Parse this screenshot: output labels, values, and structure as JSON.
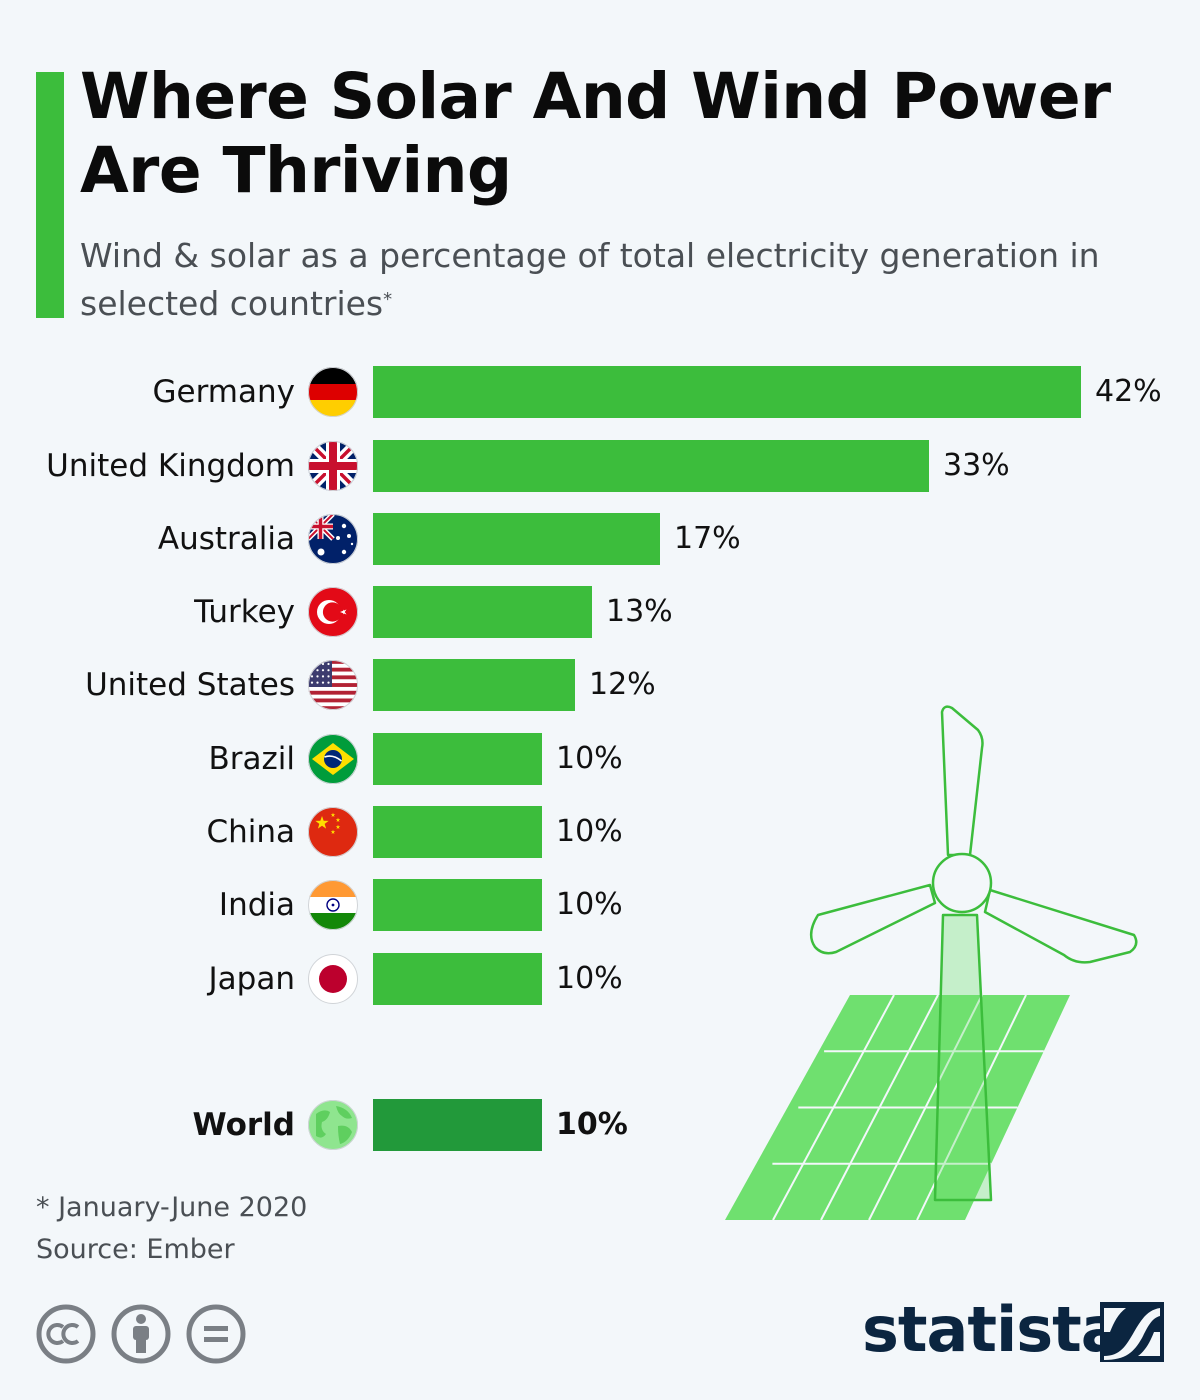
{
  "header": {
    "title": "Where Solar And Wind Power Are Thriving",
    "subtitle": "Wind & solar as a percentage of total electricity generation in selected countries",
    "subtitle_marker": "*"
  },
  "chart_data": {
    "type": "bar",
    "orientation": "horizontal",
    "title": "Where Solar And Wind Power Are Thriving",
    "subtitle": "Wind & solar as a percentage of total electricity generation in selected countries*",
    "categories": [
      "Germany",
      "United Kingdom",
      "Australia",
      "Turkey",
      "United States",
      "Brazil",
      "China",
      "India",
      "Japan",
      "World"
    ],
    "values": [
      42,
      33,
      17,
      13,
      12,
      10,
      10,
      10,
      10,
      10
    ],
    "value_labels": [
      "42%",
      "33%",
      "17%",
      "13%",
      "12%",
      "10%",
      "10%",
      "10%",
      "10%",
      "10%"
    ],
    "flags": [
      "germany-flag-icon",
      "uk-flag-icon",
      "australia-flag-icon",
      "turkey-flag-icon",
      "usa-flag-icon",
      "brazil-flag-icon",
      "china-flag-icon",
      "india-flag-icon",
      "japan-flag-icon",
      "globe-icon"
    ],
    "highlight": "World",
    "xlim": [
      0,
      42
    ],
    "grid": false,
    "colors": {
      "bar": "#3cbd3c",
      "highlight_bar": "#22993a"
    }
  },
  "footer": {
    "note": "* January-June 2020",
    "source": "Source: Ember"
  },
  "branding": {
    "logo_text": "statista",
    "license_icons": [
      "cc-icon",
      "attribution-icon",
      "no-derivatives-icon"
    ]
  },
  "colors": {
    "accent": "#3cbd3c",
    "logo": "#0b2540",
    "background": "#f3f7fa"
  }
}
